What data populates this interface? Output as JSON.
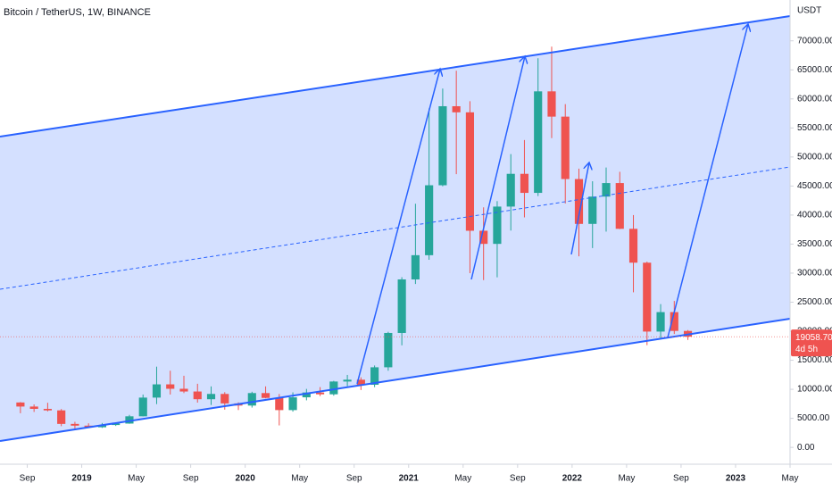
{
  "chart_data": {
    "type": "candlestick",
    "title": "Bitcoin / TetherUS, 1W, BINANCE",
    "y_axis_label": "USDT",
    "up_color": "#26a69a",
    "down_color": "#ef5350",
    "x": [
      "2018-08",
      "2018-09",
      "2018-10",
      "2018-11",
      "2018-12",
      "2019-01",
      "2019-02",
      "2019-03",
      "2019-04",
      "2019-05",
      "2019-06",
      "2019-07",
      "2019-08",
      "2019-09",
      "2019-10",
      "2019-11",
      "2019-12",
      "2020-01",
      "2020-02",
      "2020-03",
      "2020-04",
      "2020-05",
      "2020-06",
      "2020-07",
      "2020-08",
      "2020-09",
      "2020-10",
      "2020-11",
      "2020-12",
      "2021-01",
      "2021-02",
      "2021-03",
      "2021-04",
      "2021-05",
      "2021-06",
      "2021-07",
      "2021-08",
      "2021-09",
      "2021-10",
      "2021-11",
      "2021-12",
      "2022-01",
      "2022-02",
      "2022-03",
      "2022-04",
      "2022-05",
      "2022-06",
      "2022-07",
      "2022-08",
      "2022-09"
    ],
    "open": [
      7730,
      7030,
      6630,
      6370,
      4040,
      3740,
      3460,
      3850,
      4100,
      5350,
      8570,
      10850,
      10090,
      9620,
      8290,
      9200,
      7570,
      7200,
      9350,
      8520,
      6420,
      8620,
      9450,
      9140,
      11340,
      11650,
      10780,
      13790,
      19700,
      28920,
      33090,
      45130,
      58740,
      57690,
      37300,
      35040,
      41460,
      47100,
      43820,
      61300,
      56950,
      46200,
      38480,
      43180,
      45510,
      37630,
      31800,
      19940,
      23290,
      20050
    ],
    "high": [
      7800,
      7400,
      7680,
      6600,
      4400,
      4140,
      4200,
      4150,
      5600,
      9100,
      13900,
      13200,
      12330,
      10950,
      10500,
      9500,
      7750,
      9580,
      10500,
      9190,
      9470,
      10070,
      10380,
      11450,
      12480,
      12070,
      14100,
      19900,
      29300,
      41950,
      58350,
      61780,
      64850,
      59600,
      41330,
      42400,
      50500,
      52920,
      67000,
      69000,
      59100,
      47990,
      45820,
      48190,
      47450,
      40000,
      31980,
      24670,
      25210,
      20200
    ],
    "low": [
      5880,
      6100,
      6200,
      3650,
      3160,
      3350,
      3350,
      3690,
      4060,
      5330,
      7450,
      9100,
      9350,
      7710,
      7300,
      6500,
      6430,
      6850,
      8450,
      3780,
      6150,
      8100,
      8830,
      8900,
      10520,
      9880,
      10370,
      13200,
      17570,
      28130,
      32300,
      44950,
      47040,
      30000,
      28800,
      29280,
      37330,
      39600,
      43280,
      53250,
      42000,
      32900,
      34320,
      37150,
      37580,
      26700,
      17600,
      18780,
      19520,
      18500
    ],
    "close": [
      7030,
      6630,
      6370,
      4040,
      3740,
      3460,
      3850,
      4100,
      5350,
      8570,
      10850,
      10090,
      9620,
      8290,
      9200,
      7570,
      7200,
      9350,
      8520,
      6420,
      8620,
      9450,
      9140,
      11340,
      11650,
      10780,
      13790,
      19700,
      28920,
      33090,
      45130,
      58740,
      57690,
      37300,
      35040,
      41460,
      47100,
      43820,
      61300,
      56950,
      46200,
      38480,
      43180,
      45510,
      37630,
      31800,
      19940,
      23290,
      20050,
      19058.7
    ],
    "last_price": {
      "value": 19058.7,
      "label": "19058.70"
    },
    "countdown": "4d 5h",
    "xlim": [
      "2018-07",
      "2023-05"
    ],
    "xticks": [
      {
        "value": "2018-09",
        "label": "Sep"
      },
      {
        "value": "2019-01",
        "label": "2019"
      },
      {
        "value": "2019-05",
        "label": "May"
      },
      {
        "value": "2019-09",
        "label": "Sep"
      },
      {
        "value": "2020-01",
        "label": "2020"
      },
      {
        "value": "2020-05",
        "label": "May"
      },
      {
        "value": "2020-09",
        "label": "Sep"
      },
      {
        "value": "2021-01",
        "label": "2021"
      },
      {
        "value": "2021-05",
        "label": "May"
      },
      {
        "value": "2021-09",
        "label": "Sep"
      },
      {
        "value": "2022-01",
        "label": "2022"
      },
      {
        "value": "2022-05",
        "label": "May"
      },
      {
        "value": "2022-09",
        "label": "Sep"
      },
      {
        "value": "2023-01",
        "label": "2023"
      },
      {
        "value": "2023-05",
        "label": "May"
      }
    ],
    "ylim": [
      -2900,
      75800
    ],
    "yticks": [
      {
        "value": 0,
        "label": "0.00"
      },
      {
        "value": 5000,
        "label": "5000.00"
      },
      {
        "value": 10000,
        "label": "10000.00"
      },
      {
        "value": 15000,
        "label": "15000.00"
      },
      {
        "value": 20000,
        "label": "20000.00"
      },
      {
        "value": 25000,
        "label": "25000.00"
      },
      {
        "value": 30000,
        "label": "30000.00"
      },
      {
        "value": 35000,
        "label": "35000.00"
      },
      {
        "value": 40000,
        "label": "40000.00"
      },
      {
        "value": 45000,
        "label": "45000.00"
      },
      {
        "value": 50000,
        "label": "50000.00"
      },
      {
        "value": 55000,
        "label": "55000.00"
      },
      {
        "value": 60000,
        "label": "60000.00"
      },
      {
        "value": 65000,
        "label": "65000.00"
      },
      {
        "value": 70000,
        "label": "70000.00"
      }
    ]
  }
}
